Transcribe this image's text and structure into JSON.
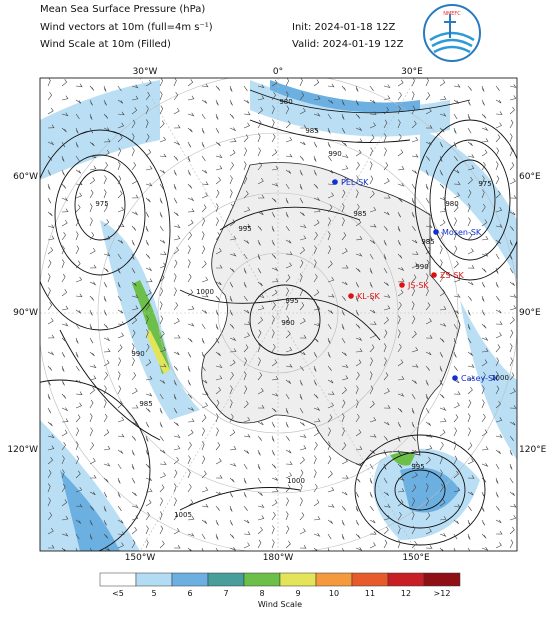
{
  "header": {
    "title_lines": [
      "Mean Sea Surface Pressure (hPa)",
      "Wind vectors at 10m (full=4m s⁻¹)",
      "Wind Scale at 10m (Filled)"
    ],
    "init": "Init: 2024-01-18 12Z",
    "valid": "Valid: 2024-01-19 12Z",
    "logo_text": "NMEFC"
  },
  "map": {
    "lon_labels_top": [
      "30°W",
      "0°",
      "30°E"
    ],
    "lon_labels_bottom": [
      "150°W",
      "180°W",
      "150°E"
    ],
    "lat_labels_left": [
      "60°W",
      "90°W",
      "120°W"
    ],
    "lat_labels_right": [
      "60°E",
      "90°E",
      "120°E"
    ],
    "stations": [
      {
        "name": "PEL-SK",
        "color": "#1030d0"
      },
      {
        "name": "Mosen-SK",
        "color": "#1030d0"
      },
      {
        "name": "ZS-SK",
        "color": "#e01010"
      },
      {
        "name": "JS-SK",
        "color": "#e01010"
      },
      {
        "name": "KL-SK",
        "color": "#e01010"
      },
      {
        "name": "Casey-SK",
        "color": "#1030d0"
      }
    ],
    "contour_labels": [
      980,
      985,
      990,
      975,
      995,
      985,
      980,
      975,
      985,
      990,
      1000,
      995,
      990,
      985,
      990,
      1000,
      1005,
      995,
      1000
    ]
  },
  "colorbar": {
    "label": "Wind Scale",
    "bins": [
      {
        "label": "<5",
        "color": "#ffffff"
      },
      {
        "label": "5",
        "color": "#b2dcf4"
      },
      {
        "label": "6",
        "color": "#6cb0e2"
      },
      {
        "label": "7",
        "color": "#479e9a"
      },
      {
        "label": "8",
        "color": "#6cc04a"
      },
      {
        "label": "9",
        "color": "#e4e45a"
      },
      {
        "label": "10",
        "color": "#f49a3c"
      },
      {
        "label": "11",
        "color": "#e65a2c"
      },
      {
        "label": "12",
        "color": "#c81e26"
      },
      {
        "label": ">12",
        "color": "#8e1014"
      }
    ]
  }
}
